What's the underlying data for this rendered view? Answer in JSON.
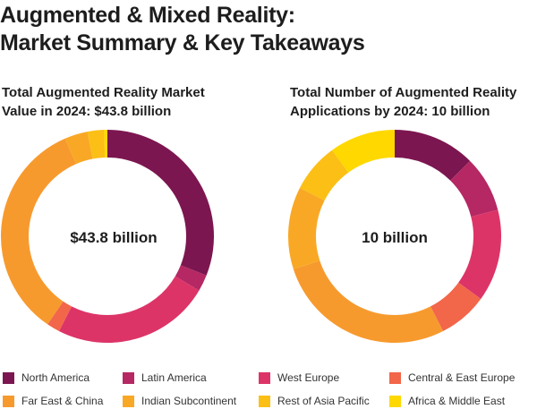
{
  "page": {
    "title_line1": "Augmented & Mixed Reality:",
    "title_line2": "Market Summary & Key Takeaways"
  },
  "chart_data": [
    {
      "type": "pie",
      "title_line1": "Total Augmented Reality Market",
      "title_line2": "Value in 2024: $43.8 billion",
      "center_label": "$43.8 billion",
      "categories": [
        "North America",
        "Latin America",
        "West Europe",
        "Central & East Europe",
        "Far East & China",
        "Indian Subcontinent",
        "Rest of Asia Pacific",
        "Africa & Middle East"
      ],
      "values": [
        31.0,
        2.5,
        24.0,
        2.0,
        34.0,
        3.5,
        2.5,
        0.5
      ],
      "unit": "%"
    },
    {
      "type": "pie",
      "title_line1": "Total Number of Augmented Reality",
      "title_line2": "Applications by 2024: 10 billion",
      "center_label": "10 billion",
      "categories": [
        "North America",
        "Latin America",
        "West Europe",
        "Central & East Europe",
        "Far East & China",
        "Indian Subcontinent",
        "Rest of Asia Pacific",
        "Africa & Middle East"
      ],
      "values": [
        12.5,
        8.5,
        14.0,
        7.5,
        27.5,
        12.5,
        7.5,
        10.0
      ],
      "unit": "%"
    }
  ],
  "legend": [
    {
      "label": "North America",
      "color": "#7c1650"
    },
    {
      "label": "Latin America",
      "color": "#b52863"
    },
    {
      "label": "West Europe",
      "color": "#dd3468"
    },
    {
      "label": "Central & East Europe",
      "color": "#f2664a"
    },
    {
      "label": "Far East & China",
      "color": "#f79a2e"
    },
    {
      "label": "Indian Subcontinent",
      "color": "#f9a825"
    },
    {
      "label": "Rest of Asia Pacific",
      "color": "#fbbf16"
    },
    {
      "label": "Africa & Middle East",
      "color": "#ffd800"
    }
  ]
}
